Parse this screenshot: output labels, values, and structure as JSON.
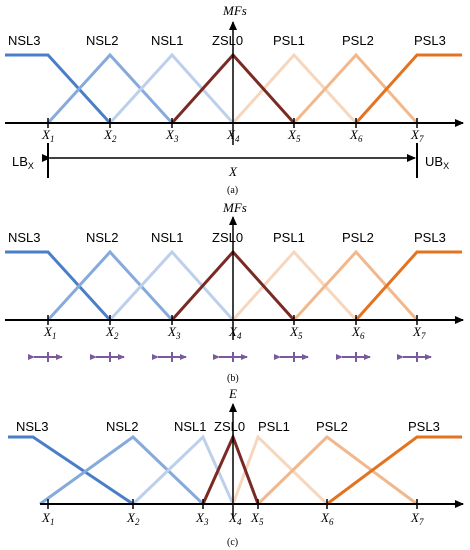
{
  "colors": {
    "NSL3": "#4a7ec8",
    "NSL2": "#86aadb",
    "NSL1": "#bcd0ec",
    "ZSL0": "#7a2a24",
    "PSL1": "#f6d7bd",
    "PSL2": "#f2b88c",
    "PSL3": "#e3731f",
    "arrow": "#7a5a9e"
  },
  "panel_a": {
    "axis_name": "MFs",
    "caption": "(a)",
    "mf_labels": [
      "NSL3",
      "NSL2",
      "NSL1",
      "ZSL0",
      "PSL1",
      "PSL2",
      "PSL3"
    ],
    "ticks": [
      "1",
      "2",
      "3",
      "4",
      "5",
      "6",
      "7"
    ],
    "tick_prefix": "X",
    "lb": "LB",
    "lb_sub": "X",
    "ub": "UB",
    "ub_sub": "X",
    "range_label": "X"
  },
  "panel_b": {
    "axis_name": "MFs",
    "caption": "(b)",
    "mf_labels": [
      "NSL3",
      "NSL2",
      "NSL1",
      "ZSL0",
      "PSL1",
      "PSL2",
      "PSL3"
    ],
    "ticks": [
      "1",
      "2",
      "3",
      "4",
      "5",
      "6",
      "7"
    ],
    "tick_prefix": "X"
  },
  "panel_c": {
    "axis_name": "E",
    "caption": "(c)",
    "mf_labels": [
      "NSL3",
      "NSL2",
      "NSL1",
      "ZSL0",
      "PSL1",
      "PSL2",
      "PSL3"
    ],
    "ticks": [
      "1",
      "2",
      "3",
      "4",
      "5",
      "6",
      "7"
    ],
    "tick_prefix": "X"
  }
}
